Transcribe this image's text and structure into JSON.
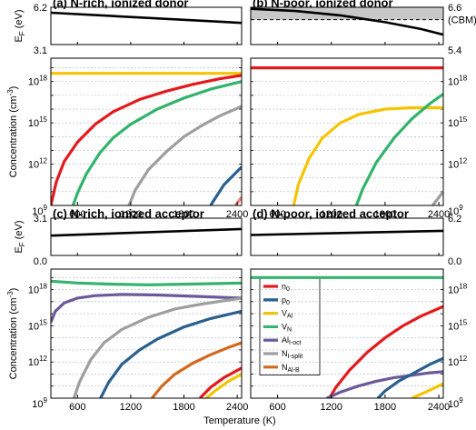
{
  "figure": {
    "xlabel": "Temperature (K)",
    "ylabel_ef": "E",
    "ylabel_ef_sub": "F",
    "ylabel_ef_unit": " (eV)",
    "ylabel_conc": "Concentration (cm",
    "ylabel_conc_sup": "-3",
    "ylabel_conc_end": ")",
    "cbm_label": "(CBM)",
    "colors": {
      "n0": "#e31a1c",
      "p0": "#2b5f8f",
      "VAl": "#f5c400",
      "VN": "#33b36b",
      "AlIoct": "#6a5a9a",
      "NIsplit": "#9e9e9e",
      "NAlB": "#d2691e",
      "ef": "#000000",
      "cbm_fill": "#c8c8c8"
    },
    "legend": [
      {
        "key": "n0",
        "main": "n",
        "sub": "0"
      },
      {
        "key": "p0",
        "main": "p",
        "sub": "0"
      },
      {
        "key": "VAl",
        "main": "V",
        "sub": "Al"
      },
      {
        "key": "VN",
        "main": "V",
        "sub": "N"
      },
      {
        "key": "AlIoct",
        "main": "Al",
        "sub": "I-oct"
      },
      {
        "key": "NIsplit",
        "main": "N",
        "sub": "I-split"
      },
      {
        "key": "NAlB",
        "main": "N",
        "sub": "Al-B"
      }
    ]
  },
  "chart_data": [
    {
      "panel": "a",
      "title": "(a) N-rich, ionized donor",
      "type": "line",
      "xlim": [
        300,
        2450
      ],
      "xticks": [
        600,
        1200,
        1800,
        2400
      ],
      "ef_ylim": [
        3.1,
        6.2
      ],
      "ef_ticks": [
        "6.2",
        "3.1"
      ],
      "ef_tick_side": "left",
      "ef_series": [
        {
          "x": [
            300,
            2450
          ],
          "y": [
            5.75,
            4.9
          ]
        }
      ],
      "conc_ylim": [
        9,
        19.7
      ],
      "conc_tick_labels": [
        "10^18",
        "10^15",
        "10^12",
        "10^9"
      ],
      "conc_tick_side": "left",
      "series": [
        {
          "key": "VAl",
          "x": [
            300,
            2450
          ],
          "y": [
            18.6,
            18.6
          ]
        },
        {
          "key": "n0",
          "x": [
            300,
            360,
            450,
            600,
            800,
            1000,
            1300,
            1600,
            1900,
            2200,
            2450
          ],
          "y": [
            9.0,
            10.7,
            12.2,
            13.6,
            14.9,
            15.8,
            16.7,
            17.3,
            17.8,
            18.2,
            18.45
          ]
        },
        {
          "key": "VN",
          "x": [
            550,
            600,
            700,
            850,
            1000,
            1200,
            1500,
            1800,
            2100,
            2450
          ],
          "y": [
            9.0,
            9.9,
            11.3,
            12.8,
            13.9,
            14.9,
            16.0,
            16.8,
            17.45,
            18.0
          ]
        },
        {
          "key": "NIsplit",
          "x": [
            1180,
            1250,
            1400,
            1600,
            1800,
            2000,
            2200,
            2450
          ],
          "y": [
            9.0,
            10.1,
            11.6,
            12.9,
            14.0,
            14.8,
            15.5,
            16.2
          ]
        },
        {
          "key": "p0",
          "x": [
            2100,
            2250,
            2450
          ],
          "y": [
            9.0,
            10.5,
            11.8
          ]
        },
        {
          "key": "n0tail",
          "color": "#f08080",
          "x": [
            2380,
            2450
          ],
          "y": [
            9.0,
            9.6
          ]
        }
      ]
    },
    {
      "panel": "b",
      "title": "(b) N-poor, ionized donor",
      "type": "line",
      "xlim": [
        300,
        2450
      ],
      "xticks": [
        600,
        1200,
        1800,
        2400
      ],
      "ef_ylim": [
        5.4,
        6.6
      ],
      "ef_ticks": [
        "6.6",
        "5.4"
      ],
      "ef_tick_side": "right",
      "cbm_level": 6.2,
      "ef_series": [
        {
          "x": [
            300,
            800,
            1300,
            1800,
            2200,
            2450
          ],
          "y": [
            6.55,
            6.48,
            6.34,
            6.12,
            5.9,
            5.72
          ]
        }
      ],
      "conc_ylim": [
        9,
        19.7
      ],
      "conc_tick_labels": [
        "10^18",
        "10^15",
        "10^12",
        "10^9"
      ],
      "conc_tick_side": "right",
      "series": [
        {
          "key": "n0",
          "x": [
            300,
            2450
          ],
          "y": [
            19.0,
            19.0
          ]
        },
        {
          "key": "VAl",
          "x": [
            780,
            830,
            950,
            1100,
            1300,
            1500,
            1800,
            2100,
            2450
          ],
          "y": [
            9.0,
            10.5,
            12.4,
            13.9,
            15.0,
            15.6,
            16.0,
            16.1,
            16.1
          ]
        },
        {
          "key": "VN",
          "x": [
            1480,
            1550,
            1700,
            1900,
            2100,
            2300,
            2450
          ],
          "y": [
            9.0,
            10.2,
            12.1,
            13.9,
            15.3,
            16.4,
            17.1
          ]
        },
        {
          "key": "NIsplit",
          "x": [
            2330,
            2450
          ],
          "y": [
            9.0,
            10.0
          ]
        }
      ]
    },
    {
      "panel": "c",
      "title": "(c) N-rich, ionized acceptor",
      "type": "line",
      "xlim": [
        300,
        2450
      ],
      "xticks": [
        600,
        1200,
        1800,
        2400
      ],
      "ef_ylim": [
        0.0,
        3.1
      ],
      "ef_ticks": [
        "3.1",
        "0.0"
      ],
      "ef_tick_side": "left",
      "ef_series": [
        {
          "x": [
            300,
            2450
          ],
          "y": [
            1.65,
            2.2
          ]
        }
      ],
      "conc_ylim": [
        9,
        19.7
      ],
      "conc_tick_labels": [
        "10^18",
        "10^15",
        "10^12",
        "10^9"
      ],
      "conc_tick_side": "left",
      "series": [
        {
          "key": "VN",
          "x": [
            300,
            600,
            1000,
            1400,
            1800,
            2200,
            2450
          ],
          "y": [
            18.7,
            18.55,
            18.45,
            18.4,
            18.45,
            18.5,
            18.55
          ]
        },
        {
          "key": "AlIoct",
          "x": [
            300,
            350,
            450,
            600,
            800,
            1100,
            1500,
            1900,
            2450
          ],
          "y": [
            15.3,
            16.2,
            16.9,
            17.3,
            17.5,
            17.6,
            17.55,
            17.45,
            17.3
          ]
        },
        {
          "key": "NIsplit",
          "x": [
            560,
            620,
            750,
            900,
            1100,
            1400,
            1700,
            2000,
            2450
          ],
          "y": [
            9.0,
            10.3,
            12.2,
            13.6,
            14.7,
            15.7,
            16.4,
            16.8,
            17.3
          ]
        },
        {
          "key": "p0",
          "x": [
            860,
            950,
            1100,
            1300,
            1500,
            1800,
            2100,
            2450
          ],
          "y": [
            9.0,
            10.3,
            11.8,
            13.0,
            13.9,
            14.9,
            15.6,
            16.2
          ]
        },
        {
          "key": "NAlB",
          "x": [
            1440,
            1550,
            1700,
            1900,
            2100,
            2300,
            2450
          ],
          "y": [
            9.0,
            10.0,
            11.0,
            11.9,
            12.6,
            13.2,
            13.6
          ]
        },
        {
          "key": "n0",
          "x": [
            1980,
            2100,
            2250,
            2450
          ],
          "y": [
            9.0,
            9.9,
            10.7,
            11.5
          ]
        },
        {
          "key": "VAl",
          "x": [
            2050,
            2150,
            2300,
            2450
          ],
          "y": [
            9.0,
            9.6,
            10.4,
            11.0
          ]
        }
      ]
    },
    {
      "panel": "d",
      "title": "(d) N-poor, ionized acceptor",
      "type": "line",
      "xlim": [
        300,
        2450
      ],
      "xticks": [
        600,
        1200,
        1800,
        2400
      ],
      "ef_ylim": [
        0.0,
        6.2
      ],
      "ef_ticks": [
        "6.2",
        "0.0"
      ],
      "ef_tick_side": "right",
      "ef_series": [
        {
          "x": [
            300,
            2450
          ],
          "y": [
            3.4,
            4.1
          ]
        }
      ],
      "conc_ylim": [
        9,
        19.7
      ],
      "conc_tick_labels": [
        "10^18",
        "10^15",
        "10^12",
        "10^9"
      ],
      "conc_tick_side": "right",
      "series": [
        {
          "key": "VN",
          "x": [
            300,
            2450
          ],
          "y": [
            19.0,
            19.0
          ]
        },
        {
          "key": "n0",
          "x": [
            1180,
            1250,
            1400,
            1600,
            1800,
            2000,
            2200,
            2450
          ],
          "y": [
            9.0,
            9.9,
            11.3,
            12.8,
            14.0,
            15.0,
            15.8,
            16.6
          ]
        },
        {
          "key": "AlIoct",
          "x": [
            1150,
            1300,
            1500,
            1700,
            1900,
            2100,
            2300,
            2450
          ],
          "y": [
            9.0,
            9.5,
            10.0,
            10.4,
            10.7,
            10.9,
            11.1,
            11.2
          ]
        },
        {
          "key": "p0",
          "x": [
            1720,
            1800,
            1950,
            2100,
            2300,
            2450
          ],
          "y": [
            9.0,
            9.6,
            10.4,
            11.0,
            11.8,
            12.3
          ]
        },
        {
          "key": "VAl",
          "x": [
            2100,
            2250,
            2450
          ],
          "y": [
            9.0,
            9.5,
            10.2
          ]
        }
      ]
    }
  ]
}
